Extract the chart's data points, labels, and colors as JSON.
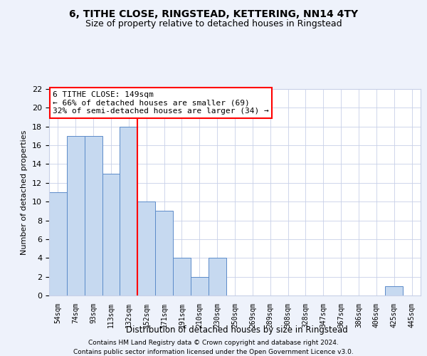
{
  "title1": "6, TITHE CLOSE, RINGSTEAD, KETTERING, NN14 4TY",
  "title2": "Size of property relative to detached houses in Ringstead",
  "xlabel": "Distribution of detached houses by size in Ringstead",
  "ylabel": "Number of detached properties",
  "categories": [
    "54sqm",
    "74sqm",
    "93sqm",
    "113sqm",
    "132sqm",
    "152sqm",
    "171sqm",
    "191sqm",
    "210sqm",
    "230sqm",
    "250sqm",
    "269sqm",
    "289sqm",
    "308sqm",
    "328sqm",
    "347sqm",
    "367sqm",
    "386sqm",
    "406sqm",
    "425sqm",
    "445sqm"
  ],
  "values": [
    11,
    17,
    17,
    13,
    18,
    10,
    9,
    4,
    2,
    4,
    0,
    0,
    0,
    0,
    0,
    0,
    0,
    0,
    0,
    1,
    0
  ],
  "bar_color": "#c6d9f0",
  "bar_edge_color": "#5b8bc9",
  "red_line_x": 4.5,
  "annotation_title": "6 TITHE CLOSE: 149sqm",
  "annotation_line1": "← 66% of detached houses are smaller (69)",
  "annotation_line2": "32% of semi-detached houses are larger (34) →",
  "ylim": [
    0,
    22
  ],
  "yticks": [
    0,
    2,
    4,
    6,
    8,
    10,
    12,
    14,
    16,
    18,
    20,
    22
  ],
  "footer1": "Contains HM Land Registry data © Crown copyright and database right 2024.",
  "footer2": "Contains public sector information licensed under the Open Government Licence v3.0.",
  "bg_color": "#eef2fb",
  "plot_bg_color": "#ffffff",
  "grid_color": "#c8d0e8"
}
